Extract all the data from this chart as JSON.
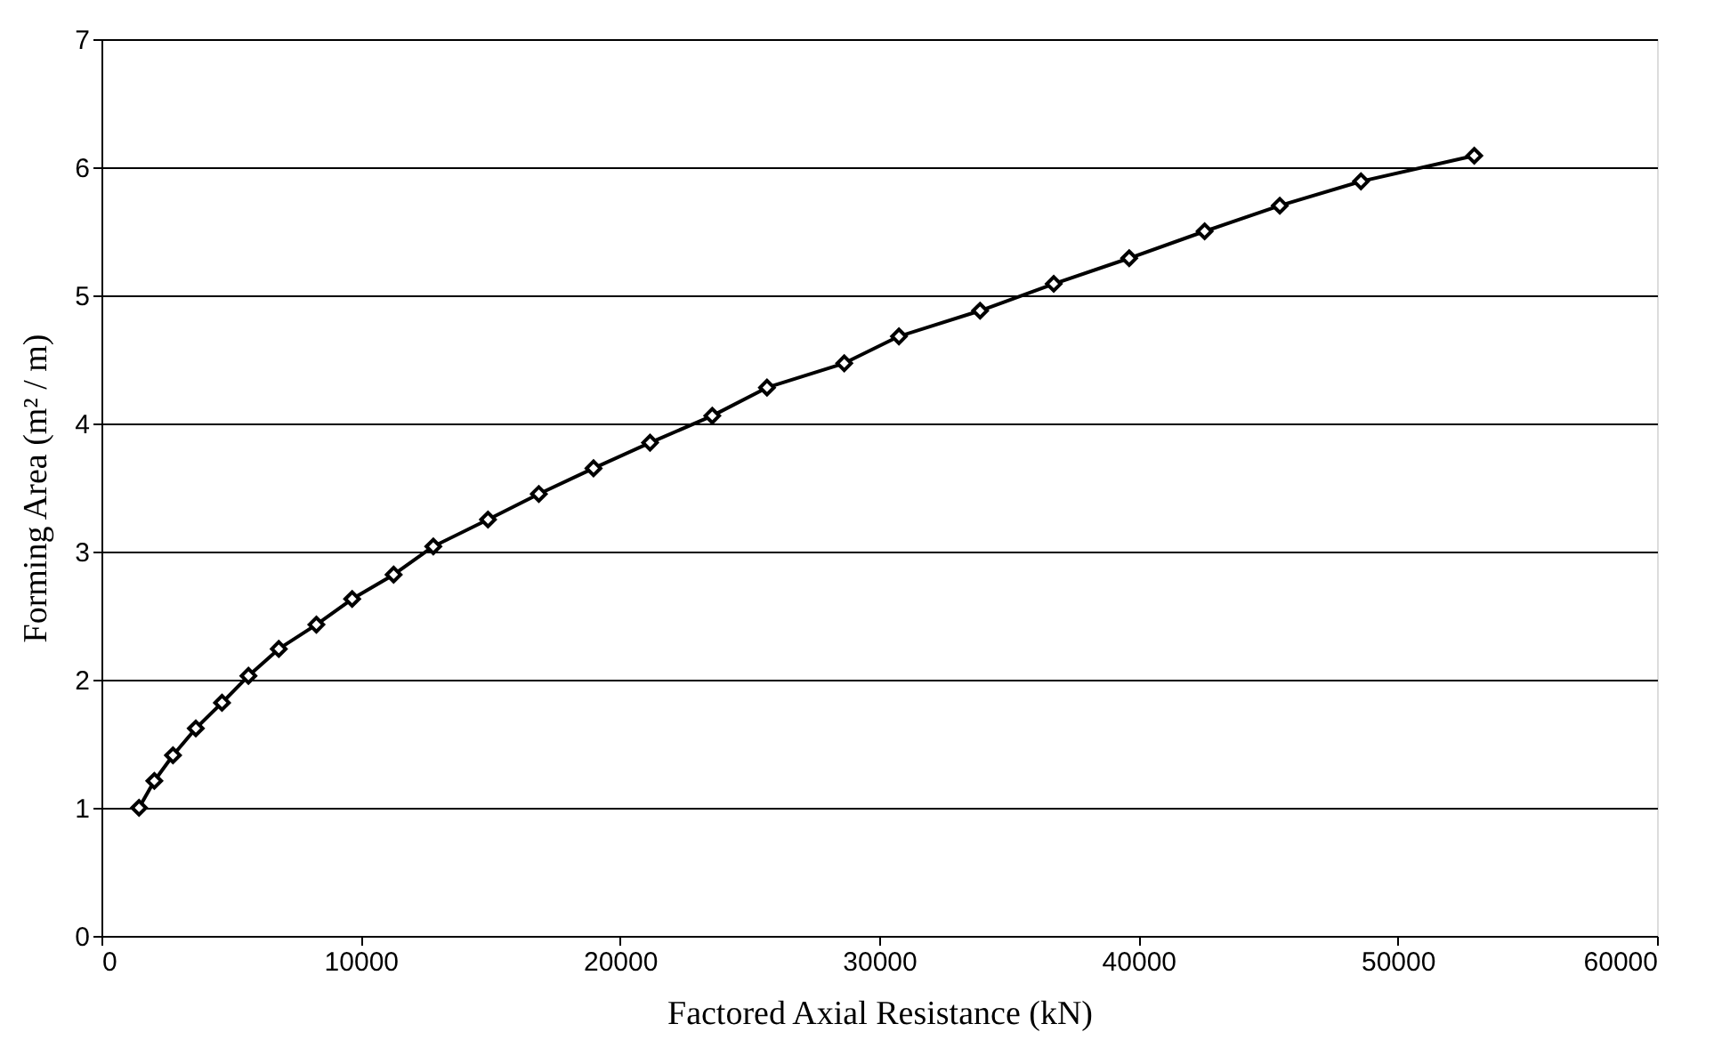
{
  "chart_data": {
    "type": "line",
    "xlabel": "Factored Axial Resistance (kN)",
    "ylabel": "Forming Area (m² / m)",
    "x": [
      1450,
      2040,
      2760,
      3640,
      4650,
      5670,
      6840,
      8290,
      9670,
      11270,
      12800,
      14910,
      16870,
      18980,
      21160,
      23560,
      25670,
      28650,
      30760,
      33890,
      36730,
      39640,
      42550,
      45450,
      48580,
      52950
    ],
    "series": [
      {
        "color": "#000000",
        "values": [
          1.0,
          1.21,
          1.41,
          1.62,
          1.82,
          2.03,
          2.24,
          2.43,
          2.63,
          2.82,
          3.04,
          3.25,
          3.45,
          3.65,
          3.85,
          4.06,
          4.28,
          4.47,
          4.68,
          4.88,
          5.09,
          5.29,
          5.5,
          5.7,
          5.89,
          6.09
        ]
      }
    ],
    "xlim": [
      0,
      60000
    ],
    "xticks": [
      0,
      10000,
      20000,
      30000,
      40000,
      50000,
      60000
    ],
    "ylim": [
      0,
      7
    ],
    "yticks": [
      0,
      1,
      2,
      3,
      4,
      5,
      6,
      7
    ],
    "grid": "y",
    "marker": "diamond",
    "line_style": "solid"
  }
}
